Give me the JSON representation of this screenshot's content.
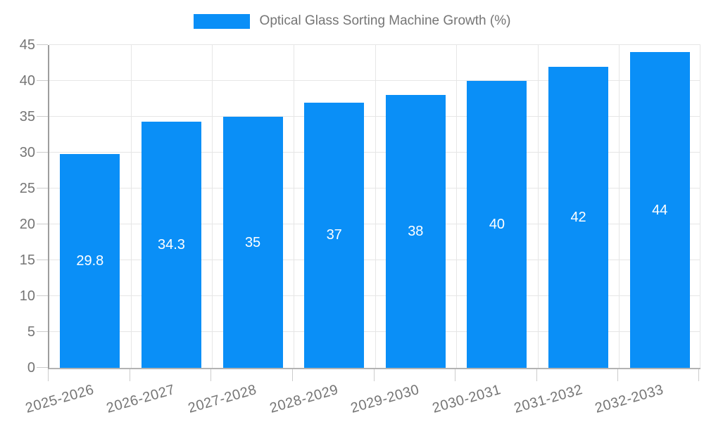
{
  "legend": {
    "label": "Optical Glass Sorting Machine Growth (%)"
  },
  "chart_data": {
    "type": "bar",
    "title": "Optical Glass Sorting Machine Growth (%)",
    "categories": [
      "2025-2026",
      "2026-2027",
      "2027-2028",
      "2028-2029",
      "2029-2030",
      "2030-2031",
      "2031-2032",
      "2032-2033"
    ],
    "values": [
      29.8,
      34.3,
      35,
      37,
      38,
      40,
      42,
      44
    ],
    "value_labels": [
      "29.8",
      "34.3",
      "35",
      "37",
      "38",
      "40",
      "42",
      "44"
    ],
    "xlabel": "",
    "ylabel": "",
    "ylim": [
      0,
      45
    ],
    "yticks": [
      0,
      5,
      10,
      15,
      20,
      25,
      30,
      35,
      40,
      45
    ],
    "grid": true,
    "legend_position": "top-center",
    "colors": {
      "bar": "#0a8ff7",
      "axis_text": "#757575",
      "value_label": "#ffffff",
      "gridline": "#e6e6e6",
      "y_axis_line": "#9e9e9e",
      "x_axis_line": "#b3b3b3",
      "tick": "#cccccc",
      "background": "#ffffff"
    }
  }
}
